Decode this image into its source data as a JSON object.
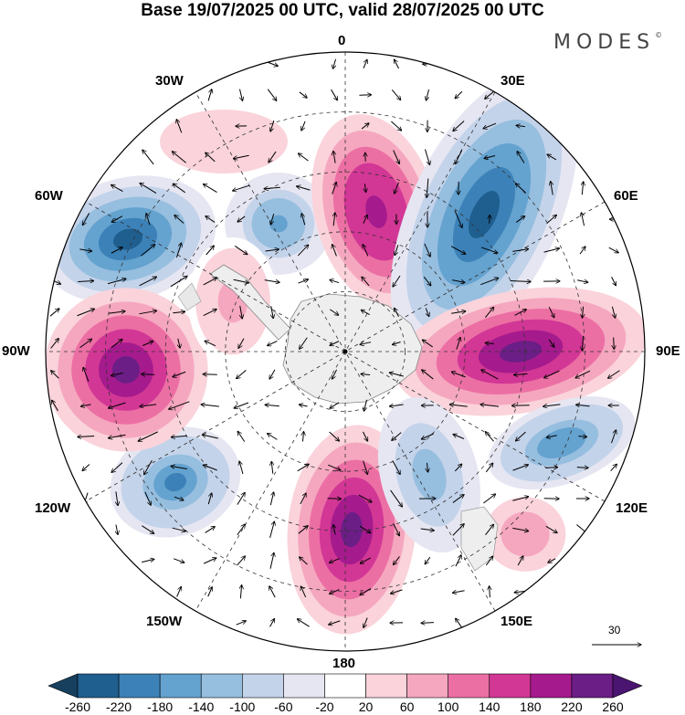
{
  "title": "Base 19/07/2025 00 UTC, valid 28/07/2025 00 UTC",
  "brand": "MODES",
  "brand_mark": "©",
  "longitude_labels": {
    "lon_0": "0",
    "lon_30e": "30E",
    "lon_60e": "60E",
    "lon_90e": "90E",
    "lon_120e": "120E",
    "lon_150e": "150E",
    "lon_180": "180",
    "lon_150w": "150W",
    "lon_120w": "120W",
    "lon_90w": "90W",
    "lon_60w": "60W",
    "lon_30w": "30W"
  },
  "reference_vector": {
    "label": "30"
  },
  "colorbar": {
    "ticks": [
      "-260",
      "-220",
      "-180",
      "-140",
      "-100",
      "-60",
      "-20",
      "20",
      "60",
      "100",
      "140",
      "180",
      "220",
      "260"
    ],
    "colors": [
      "#17405f",
      "#1f5f8f",
      "#3c82b8",
      "#64a2cf",
      "#96bedf",
      "#c3d3ea",
      "#e6e6f2",
      "#ffffff",
      "#fad3db",
      "#f5a7bf",
      "#ec6fa4",
      "#d23795",
      "#a51b8d",
      "#6b1e86",
      "#4a1570"
    ]
  },
  "anomaly_centers": [
    {
      "name": "low-60w",
      "value": -230
    },
    {
      "name": "low-40w",
      "value": -150
    },
    {
      "name": "high-10e",
      "value": 210
    },
    {
      "name": "low-40e",
      "value": -250
    },
    {
      "name": "high-90e",
      "value": 240
    },
    {
      "name": "low-120e",
      "value": -180
    },
    {
      "name": "high-135e",
      "value": 100
    },
    {
      "name": "high-180",
      "value": 240
    },
    {
      "name": "low-150e",
      "value": -140
    },
    {
      "name": "low-125w",
      "value": -190
    },
    {
      "name": "high-90w",
      "value": 250
    },
    {
      "name": "high-20w",
      "value": 60
    },
    {
      "name": "high-75w",
      "value": 80
    }
  ]
}
